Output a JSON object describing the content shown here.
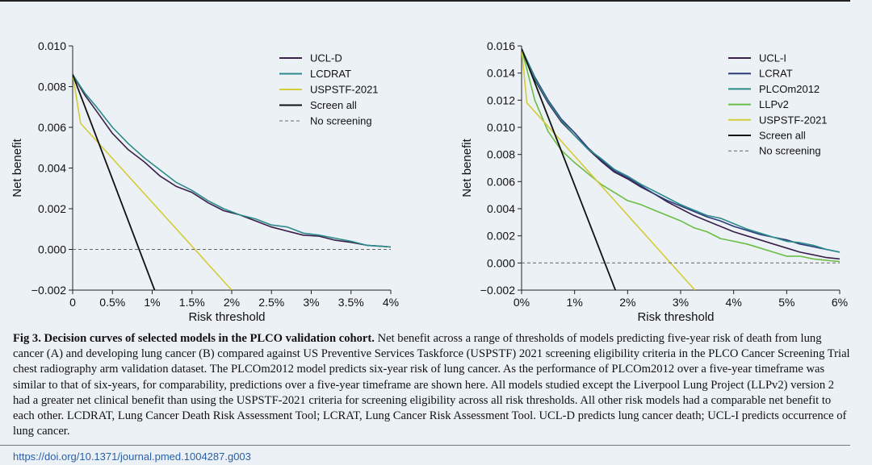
{
  "chart_data": [
    {
      "panel": "A",
      "type": "line",
      "title": "",
      "xlabel": "Risk threshold",
      "ylabel": "Net benefit",
      "xlim": [
        0,
        4
      ],
      "ylim": [
        -0.002,
        0.01
      ],
      "x_unit": "%",
      "x_ticks": [
        0,
        0.5,
        1,
        1.5,
        2,
        2.5,
        3,
        3.5,
        4
      ],
      "x_tick_labels": [
        "0",
        "0.5%",
        "1%",
        "1.5%",
        "2%",
        "2.5%",
        "3%",
        "3.5%",
        "4%"
      ],
      "y_ticks": [
        -0.002,
        0,
        0.002,
        0.004,
        0.006,
        0.008,
        0.01
      ],
      "y_tick_labels": [
        "−0.002",
        "0.000",
        "0.002",
        "0.004",
        "0.006",
        "0.008",
        "0.010"
      ],
      "legend_position": "top-right",
      "series": [
        {
          "name": "UCL-D",
          "color": "#3a1f4a",
          "dash": "solid",
          "width": 1.6,
          "x": [
            0,
            0.15,
            0.3,
            0.5,
            0.7,
            0.9,
            1.1,
            1.3,
            1.5,
            1.7,
            1.9,
            2.1,
            2.3,
            2.5,
            2.7,
            2.9,
            3.1,
            3.3,
            3.5,
            3.7,
            3.9,
            4.0
          ],
          "y": [
            0.0086,
            0.0076,
            0.0068,
            0.0057,
            0.0049,
            0.0043,
            0.0036,
            0.0031,
            0.0028,
            0.0023,
            0.0019,
            0.0017,
            0.0014,
            0.0011,
            0.0009,
            0.0007,
            0.00065,
            0.00045,
            0.00035,
            0.0002,
            0.00015,
            0.00012
          ]
        },
        {
          "name": "LCDRAT",
          "color": "#2b8a8a",
          "dash": "solid",
          "width": 1.6,
          "x": [
            0,
            0.15,
            0.3,
            0.5,
            0.7,
            0.9,
            1.1,
            1.3,
            1.5,
            1.7,
            1.9,
            2.1,
            2.3,
            2.5,
            2.7,
            2.9,
            3.1,
            3.3,
            3.5,
            3.7,
            3.9,
            4.0
          ],
          "y": [
            0.0086,
            0.0077,
            0.007,
            0.006,
            0.0052,
            0.0045,
            0.0039,
            0.0033,
            0.0029,
            0.0024,
            0.002,
            0.0017,
            0.0015,
            0.0012,
            0.0011,
            0.0008,
            0.0007,
            0.00055,
            0.0004,
            0.0002,
            0.00015,
            0.00012
          ]
        },
        {
          "name": "USPSTF-2021",
          "color": "#d4cc38",
          "dash": "solid",
          "width": 1.6,
          "x": [
            0,
            0.1,
            2.0
          ],
          "y": [
            0.0086,
            0.0062,
            -0.002
          ]
        },
        {
          "name": "Screen all",
          "color": "#111111",
          "dash": "solid",
          "width": 1.8,
          "x": [
            0,
            1.03
          ],
          "y": [
            0.0086,
            -0.002
          ]
        },
        {
          "name": "No screening",
          "color": "#666666",
          "dash": "4,3",
          "width": 1,
          "x": [
            0,
            4.0
          ],
          "y": [
            0,
            0
          ]
        }
      ]
    },
    {
      "panel": "B",
      "type": "line",
      "title": "",
      "xlabel": "Risk threshold",
      "ylabel": "Net benefit",
      "xlim": [
        0,
        6
      ],
      "ylim": [
        -0.002,
        0.016
      ],
      "x_unit": "%",
      "x_ticks": [
        0,
        1,
        2,
        3,
        4,
        5,
        6
      ],
      "x_tick_labels": [
        "0%",
        "1%",
        "2%",
        "3%",
        "4%",
        "5%",
        "6%"
      ],
      "y_ticks": [
        -0.002,
        0,
        0.002,
        0.004,
        0.006,
        0.008,
        0.01,
        0.012,
        0.014,
        0.016
      ],
      "y_tick_labels": [
        "−0.002",
        "0.000",
        "0.002",
        "0.004",
        "0.006",
        "0.008",
        "0.010",
        "0.012",
        "0.014",
        "0.016"
      ],
      "legend_position": "top-right",
      "series": [
        {
          "name": "UCL-I",
          "color": "#3a1f4a",
          "dash": "solid",
          "width": 1.6,
          "x": [
            0,
            0.25,
            0.5,
            0.75,
            1.0,
            1.25,
            1.5,
            1.75,
            2.0,
            2.25,
            2.5,
            2.75,
            3.0,
            3.25,
            3.5,
            3.75,
            4.0,
            4.25,
            4.5,
            4.75,
            5.0,
            5.25,
            5.5,
            5.75,
            6.0
          ],
          "y": [
            0.0158,
            0.0135,
            0.0118,
            0.0104,
            0.0094,
            0.0084,
            0.0075,
            0.0067,
            0.0062,
            0.0056,
            0.0051,
            0.0045,
            0.004,
            0.0035,
            0.0031,
            0.0027,
            0.0023,
            0.002,
            0.0017,
            0.0014,
            0.0011,
            0.0008,
            0.0006,
            0.0004,
            0.0003
          ]
        },
        {
          "name": "LCRAT",
          "color": "#2c3a7a",
          "dash": "solid",
          "width": 1.6,
          "x": [
            0,
            0.25,
            0.5,
            0.75,
            1.0,
            1.25,
            1.5,
            1.75,
            2.0,
            2.25,
            2.5,
            2.75,
            3.0,
            3.25,
            3.5,
            3.75,
            4.0,
            4.25,
            4.5,
            4.75,
            5.0,
            5.25,
            5.5,
            5.75,
            6.0
          ],
          "y": [
            0.0158,
            0.0137,
            0.012,
            0.0106,
            0.0096,
            0.0085,
            0.0076,
            0.0068,
            0.0063,
            0.0057,
            0.0051,
            0.0046,
            0.0042,
            0.0038,
            0.0034,
            0.0031,
            0.0027,
            0.0024,
            0.0021,
            0.0019,
            0.0017,
            0.0014,
            0.0012,
            0.001,
            0.0008
          ]
        },
        {
          "name": "PLCOm2012",
          "color": "#2b8a8a",
          "dash": "solid",
          "width": 1.6,
          "x": [
            0,
            0.25,
            0.5,
            0.75,
            1.0,
            1.25,
            1.5,
            1.75,
            2.0,
            2.25,
            2.5,
            2.75,
            3.0,
            3.25,
            3.5,
            3.75,
            4.0,
            4.25,
            4.5,
            4.75,
            5.0,
            5.25,
            5.5,
            5.75,
            6.0
          ],
          "y": [
            0.0158,
            0.0136,
            0.0119,
            0.0105,
            0.0094,
            0.0084,
            0.0077,
            0.0069,
            0.0064,
            0.0058,
            0.0053,
            0.0048,
            0.0043,
            0.0039,
            0.0035,
            0.0033,
            0.0029,
            0.0025,
            0.0022,
            0.0019,
            0.0016,
            0.0015,
            0.0013,
            0.001,
            0.0008
          ]
        },
        {
          "name": "LLPv2",
          "color": "#6abd45",
          "dash": "solid",
          "width": 1.6,
          "x": [
            0,
            0.25,
            0.5,
            0.75,
            1.0,
            1.25,
            1.5,
            1.75,
            2.0,
            2.25,
            2.5,
            2.75,
            3.0,
            3.25,
            3.5,
            3.75,
            4.0,
            4.25,
            4.5,
            4.75,
            5.0,
            5.25,
            5.5,
            5.75,
            6.0
          ],
          "y": [
            0.0158,
            0.012,
            0.0097,
            0.0083,
            0.0074,
            0.0066,
            0.0058,
            0.0052,
            0.0046,
            0.0043,
            0.0039,
            0.0035,
            0.0031,
            0.0026,
            0.0023,
            0.0018,
            0.0016,
            0.0014,
            0.0011,
            0.0008,
            0.0005,
            0.0005,
            0.0003,
            0.0002,
            0.0001
          ]
        },
        {
          "name": "USPSTF-2021",
          "color": "#d4cc38",
          "dash": "solid",
          "width": 1.6,
          "x": [
            0,
            0.1,
            3.27
          ],
          "y": [
            0.0158,
            0.0118,
            -0.002
          ]
        },
        {
          "name": "Screen all",
          "color": "#111111",
          "dash": "solid",
          "width": 1.8,
          "x": [
            0,
            1.77
          ],
          "y": [
            0.0158,
            -0.002
          ]
        },
        {
          "name": "No screening",
          "color": "#666666",
          "dash": "4,3",
          "width": 1,
          "x": [
            0,
            6.0
          ],
          "y": [
            0,
            0
          ]
        }
      ]
    }
  ],
  "caption": {
    "title": "Fig 3.  Decision curves of selected models in the PLCO validation cohort.",
    "body": "Net benefit across a range of thresholds of models predicting five-year risk of death from lung cancer (A) and developing lung cancer (B) compared against US Preventive Services Taskforce (USPSTF) 2021 screening eligibility criteria in the PLCO Cancer Screening Trial chest radiography arm validation dataset. The PLCOm2012 model predicts six-year risk of lung cancer. As the performance of PLCOm2012 over a five-year timeframe was similar to that of six-years, for comparability, predictions over a five-year timeframe are shown here. All models studied except the Liverpool Lung Project (LLPv2) version 2 had a greater net clinical benefit than using the USPSTF-2021 criteria for screening eligibility across all risk thresholds. All other risk models had a comparable net benefit to each other. LCDRAT, Lung Cancer Death Risk Assessment Tool; LCRAT, Lung Cancer Risk Assessment Tool. UCL-D predicts lung cancer death; UCL-I predicts occurrence of lung cancer."
  },
  "doi": "https://doi.org/10.1371/journal.pmed.1004287.g003"
}
